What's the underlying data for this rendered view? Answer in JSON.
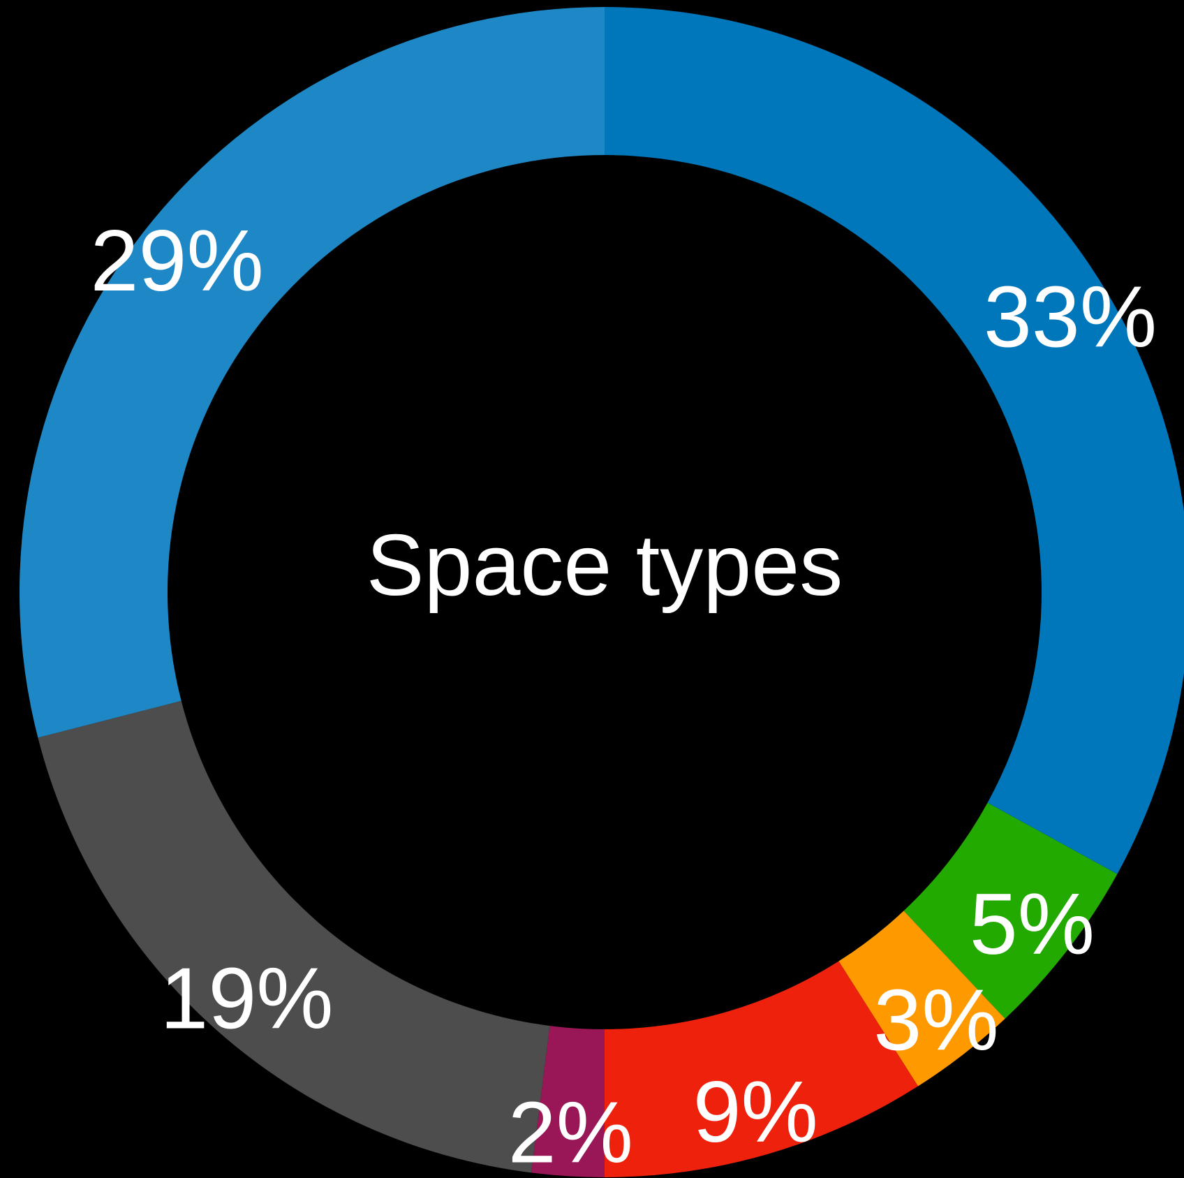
{
  "chart_data": {
    "type": "pie",
    "variant": "donut",
    "title": "Space types",
    "background": "#000000",
    "slices": [
      {
        "value": 33,
        "label": "33%",
        "color": "#0077BB"
      },
      {
        "value": 5,
        "label": "5%",
        "color": "#22AA00"
      },
      {
        "value": 3,
        "label": "3%",
        "color": "#FF9900"
      },
      {
        "value": 9,
        "label": "9%",
        "color": "#EE220C"
      },
      {
        "value": 2,
        "label": "2%",
        "color": "#991757"
      },
      {
        "value": 19,
        "label": "19%",
        "color": "#4D4D4D"
      },
      {
        "value": 29,
        "label": "29%",
        "color": "#1E88C7"
      }
    ]
  }
}
